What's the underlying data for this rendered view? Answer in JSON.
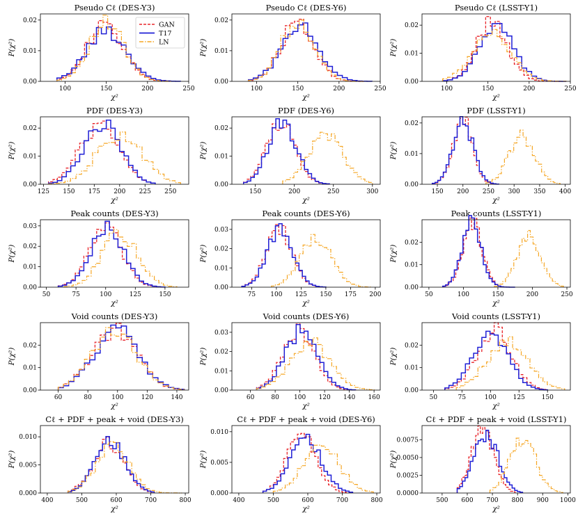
{
  "legend": [
    "GAN",
    "T17",
    "LN"
  ],
  "series_colors": {
    "GAN": "#e8262b",
    "T17": "#1f1fd6",
    "LN": "#f5a623"
  },
  "xlabel": "χ²",
  "ylabel": "P(χ²)",
  "chart_data": [
    {
      "type": "step",
      "title": "Pseudo Cℓ (DES-Y3)",
      "xlim": [
        70,
        250
      ],
      "ylim": [
        0,
        0.022
      ],
      "xticks": [
        {
          "v": 100,
          "l": "100"
        },
        {
          "v": 150,
          "l": "150"
        },
        {
          "v": 200,
          "l": "200"
        },
        {
          "v": 250,
          "l": "250"
        }
      ],
      "yticks": [
        {
          "v": 0,
          "l": "0.00"
        },
        {
          "v": 0.01,
          "l": "0.01"
        },
        {
          "v": 0.02,
          "l": "0.02"
        }
      ],
      "legend_shown": true,
      "series": [
        {
          "name": "GAN",
          "mu": 148,
          "sd": 22,
          "lo": 90,
          "hi": 230,
          "bins": 25
        },
        {
          "name": "T17",
          "mu": 150,
          "sd": 24,
          "lo": 90,
          "hi": 240,
          "bins": 25
        },
        {
          "name": "LN",
          "mu": 150,
          "sd": 21,
          "lo": 90,
          "hi": 230,
          "bins": 25
        }
      ]
    },
    {
      "type": "step",
      "title": "Pseudo Cℓ (DES-Y6)",
      "xlim": [
        70,
        250
      ],
      "ylim": [
        0,
        0.022
      ],
      "xticks": [
        {
          "v": 100,
          "l": "100"
        },
        {
          "v": 150,
          "l": "150"
        },
        {
          "v": 200,
          "l": "200"
        },
        {
          "v": 250,
          "l": "250"
        }
      ],
      "yticks": [
        {
          "v": 0,
          "l": "0.00"
        },
        {
          "v": 0.01,
          "l": "0.01"
        },
        {
          "v": 0.02,
          "l": "0.02"
        }
      ],
      "series": [
        {
          "name": "GAN",
          "mu": 150,
          "sd": 20,
          "lo": 90,
          "hi": 230,
          "bins": 25
        },
        {
          "name": "T17",
          "mu": 153,
          "sd": 23,
          "lo": 90,
          "hi": 240,
          "bins": 25
        },
        {
          "name": "LN",
          "mu": 150,
          "sd": 20,
          "lo": 90,
          "hi": 230,
          "bins": 25
        }
      ]
    },
    {
      "type": "step",
      "title": "Pseudo Cℓ (LSST-Y1)",
      "xlim": [
        70,
        250
      ],
      "ylim": [
        0,
        0.024
      ],
      "xticks": [
        {
          "v": 100,
          "l": "100"
        },
        {
          "v": 150,
          "l": "150"
        },
        {
          "v": 200,
          "l": "200"
        },
        {
          "v": 250,
          "l": "250"
        }
      ],
      "yticks": [
        {
          "v": 0,
          "l": "0.00"
        },
        {
          "v": 0.01,
          "l": "0.01"
        },
        {
          "v": 0.02,
          "l": "0.02"
        }
      ],
      "series": [
        {
          "name": "GAN",
          "mu": 155,
          "sd": 19,
          "lo": 95,
          "hi": 240,
          "bins": 25
        },
        {
          "name": "T17",
          "mu": 160,
          "sd": 21,
          "lo": 95,
          "hi": 245,
          "bins": 25
        },
        {
          "name": "LN",
          "mu": 155,
          "sd": 23,
          "lo": 95,
          "hi": 245,
          "bins": 25
        }
      ]
    },
    {
      "type": "step",
      "title": "PDF (DES-Y3)",
      "xlim": [
        122,
        268
      ],
      "ylim": [
        0,
        0.024
      ],
      "xticks": [
        {
          "v": 125,
          "l": "125"
        },
        {
          "v": 150,
          "l": "150"
        },
        {
          "v": 175,
          "l": "175"
        },
        {
          "v": 200,
          "l": "200"
        },
        {
          "v": 225,
          "l": "225"
        },
        {
          "v": 250,
          "l": "250"
        }
      ],
      "yticks": [
        {
          "v": 0,
          "l": "0.00"
        },
        {
          "v": 0.01,
          "l": "0.01"
        },
        {
          "v": 0.02,
          "l": "0.02"
        }
      ],
      "series": [
        {
          "name": "GAN",
          "mu": 180,
          "sd": 19,
          "lo": 130,
          "hi": 235,
          "bins": 24
        },
        {
          "name": "T17",
          "mu": 183,
          "sd": 18,
          "lo": 130,
          "hi": 235,
          "bins": 24
        },
        {
          "name": "LN",
          "mu": 200,
          "sd": 22,
          "lo": 130,
          "hi": 260,
          "bins": 24
        }
      ]
    },
    {
      "type": "step",
      "title": "PDF (DES-Y6)",
      "xlim": [
        120,
        310
      ],
      "ylim": [
        0,
        0.024
      ],
      "xticks": [
        {
          "v": 150,
          "l": "150"
        },
        {
          "v": 200,
          "l": "200"
        },
        {
          "v": 250,
          "l": "250"
        },
        {
          "v": 300,
          "l": "300"
        }
      ],
      "yticks": [
        {
          "v": 0,
          "l": "0.00"
        },
        {
          "v": 0.01,
          "l": "0.01"
        },
        {
          "v": 0.02,
          "l": "0.02"
        }
      ],
      "series": [
        {
          "name": "GAN",
          "mu": 183,
          "sd": 18,
          "lo": 135,
          "hi": 245,
          "bins": 24
        },
        {
          "name": "T17",
          "mu": 185,
          "sd": 18,
          "lo": 135,
          "hi": 245,
          "bins": 24
        },
        {
          "name": "LN",
          "mu": 240,
          "sd": 22,
          "lo": 185,
          "hi": 300,
          "bins": 24
        }
      ]
    },
    {
      "type": "step",
      "title": "PDF (LSST-Y1)",
      "xlim": [
        120,
        410
      ],
      "ylim": [
        0,
        0.022
      ],
      "xticks": [
        {
          "v": 150,
          "l": "150"
        },
        {
          "v": 200,
          "l": "200"
        },
        {
          "v": 250,
          "l": "250"
        },
        {
          "v": 300,
          "l": "300"
        },
        {
          "v": 350,
          "l": "350"
        },
        {
          "v": 400,
          "l": "400"
        }
      ],
      "yticks": [
        {
          "v": 0,
          "l": "0.00"
        },
        {
          "v": 0.01,
          "l": "0.01"
        },
        {
          "v": 0.02,
          "l": "0.02"
        }
      ],
      "series": [
        {
          "name": "GAN",
          "mu": 200,
          "sd": 19,
          "lo": 140,
          "hi": 270,
          "bins": 24
        },
        {
          "name": "T17",
          "mu": 201,
          "sd": 20,
          "lo": 140,
          "hi": 270,
          "bins": 24
        },
        {
          "name": "LN",
          "mu": 315,
          "sd": 25,
          "lo": 245,
          "hi": 390,
          "bins": 24
        }
      ]
    },
    {
      "type": "step",
      "title": "Peak counts (DES-Y3)",
      "xlim": [
        45,
        170
      ],
      "ylim": [
        0,
        0.033
      ],
      "xticks": [
        {
          "v": 50,
          "l": "50"
        },
        {
          "v": 75,
          "l": "75"
        },
        {
          "v": 100,
          "l": "100"
        },
        {
          "v": 125,
          "l": "125"
        },
        {
          "v": 150,
          "l": "150"
        }
      ],
      "yticks": [
        {
          "v": 0,
          "l": "0.00"
        },
        {
          "v": 0.01,
          "l": "0.01"
        },
        {
          "v": 0.02,
          "l": "0.02"
        },
        {
          "v": 0.03,
          "l": "0.03"
        }
      ],
      "series": [
        {
          "name": "GAN",
          "mu": 100,
          "sd": 14,
          "lo": 60,
          "hi": 150,
          "bins": 25
        },
        {
          "name": "T17",
          "mu": 101,
          "sd": 14,
          "lo": 60,
          "hi": 150,
          "bins": 25
        },
        {
          "name": "LN",
          "mu": 112,
          "sd": 15,
          "lo": 65,
          "hi": 160,
          "bins": 25
        }
      ]
    },
    {
      "type": "step",
      "title": "Peak counts (DES-Y6)",
      "xlim": [
        55,
        205
      ],
      "ylim": [
        0,
        0.035
      ],
      "xticks": [
        {
          "v": 75,
          "l": "75"
        },
        {
          "v": 100,
          "l": "100"
        },
        {
          "v": 125,
          "l": "125"
        },
        {
          "v": 150,
          "l": "150"
        },
        {
          "v": 175,
          "l": "175"
        },
        {
          "v": 200,
          "l": "200"
        }
      ],
      "yticks": [
        {
          "v": 0,
          "l": "0.00"
        },
        {
          "v": 0.01,
          "l": "0.01"
        },
        {
          "v": 0.02,
          "l": "0.02"
        },
        {
          "v": 0.03,
          "l": "0.03"
        }
      ],
      "series": [
        {
          "name": "GAN",
          "mu": 103,
          "sd": 13,
          "lo": 65,
          "hi": 150,
          "bins": 25
        },
        {
          "name": "T17",
          "mu": 104,
          "sd": 13,
          "lo": 65,
          "hi": 150,
          "bins": 25
        },
        {
          "name": "LN",
          "mu": 140,
          "sd": 16,
          "lo": 95,
          "hi": 195,
          "bins": 25
        }
      ]
    },
    {
      "type": "step",
      "title": "Peak counts (LSST-Y1)",
      "xlim": [
        40,
        255
      ],
      "ylim": [
        0,
        0.03
      ],
      "xticks": [
        {
          "v": 50,
          "l": "50"
        },
        {
          "v": 100,
          "l": "100"
        },
        {
          "v": 150,
          "l": "150"
        },
        {
          "v": 200,
          "l": "200"
        },
        {
          "v": 250,
          "l": "250"
        }
      ],
      "yticks": [
        {
          "v": 0,
          "l": "0.00"
        },
        {
          "v": 0.01,
          "l": "0.01"
        },
        {
          "v": 0.02,
          "l": "0.02"
        }
      ],
      "series": [
        {
          "name": "GAN",
          "mu": 113,
          "sd": 14,
          "lo": 70,
          "hi": 165,
          "bins": 25
        },
        {
          "name": "T17",
          "mu": 112,
          "sd": 14,
          "lo": 70,
          "hi": 175,
          "bins": 25
        },
        {
          "name": "LN",
          "mu": 195,
          "sd": 17,
          "lo": 145,
          "hi": 245,
          "bins": 25
        }
      ]
    },
    {
      "type": "step",
      "title": "Void counts (DES-Y3)",
      "xlim": [
        48,
        148
      ],
      "ylim": [
        0,
        0.03
      ],
      "xticks": [
        {
          "v": 60,
          "l": "60"
        },
        {
          "v": 80,
          "l": "80"
        },
        {
          "v": 100,
          "l": "100"
        },
        {
          "v": 120,
          "l": "120"
        },
        {
          "v": 140,
          "l": "140"
        }
      ],
      "yticks": [
        {
          "v": 0,
          "l": "0.00"
        },
        {
          "v": 0.01,
          "l": "0.01"
        },
        {
          "v": 0.02,
          "l": "0.02"
        }
      ],
      "series": [
        {
          "name": "GAN",
          "mu": 98,
          "sd": 15,
          "lo": 60,
          "hi": 145,
          "bins": 24
        },
        {
          "name": "T17",
          "mu": 99,
          "sd": 15,
          "lo": 60,
          "hi": 145,
          "bins": 24
        },
        {
          "name": "LN",
          "mu": 98,
          "sd": 15,
          "lo": 60,
          "hi": 145,
          "bins": 24
        }
      ]
    },
    {
      "type": "step",
      "title": "Void counts (DES-Y6)",
      "xlim": [
        45,
        165
      ],
      "ylim": [
        0,
        0.035
      ],
      "xticks": [
        {
          "v": 60,
          "l": "60"
        },
        {
          "v": 80,
          "l": "80"
        },
        {
          "v": 100,
          "l": "100"
        },
        {
          "v": 120,
          "l": "120"
        },
        {
          "v": 140,
          "l": "140"
        },
        {
          "v": 160,
          "l": "160"
        }
      ],
      "yticks": [
        {
          "v": 0,
          "l": "0.00"
        },
        {
          "v": 0.01,
          "l": "0.01"
        },
        {
          "v": 0.02,
          "l": "0.02"
        },
        {
          "v": 0.03,
          "l": "0.03"
        }
      ],
      "series": [
        {
          "name": "GAN",
          "mu": 99,
          "sd": 13,
          "lo": 65,
          "hi": 145,
          "bins": 25
        },
        {
          "name": "T17",
          "mu": 101,
          "sd": 13,
          "lo": 65,
          "hi": 145,
          "bins": 25
        },
        {
          "name": "LN",
          "mu": 108,
          "sd": 16,
          "lo": 65,
          "hi": 160,
          "bins": 25
        }
      ]
    },
    {
      "type": "step",
      "title": "Void counts (LSST-Y1)",
      "xlim": [
        40,
        170
      ],
      "ylim": [
        0,
        0.03
      ],
      "xticks": [
        {
          "v": 50,
          "l": "50"
        },
        {
          "v": 75,
          "l": "75"
        },
        {
          "v": 100,
          "l": "100"
        },
        {
          "v": 125,
          "l": "125"
        },
        {
          "v": 150,
          "l": "150"
        }
      ],
      "yticks": [
        {
          "v": 0,
          "l": "0.00"
        },
        {
          "v": 0.01,
          "l": "0.01"
        },
        {
          "v": 0.02,
          "l": "0.02"
        }
      ],
      "series": [
        {
          "name": "GAN",
          "mu": 103,
          "sd": 15,
          "lo": 60,
          "hi": 150,
          "bins": 25
        },
        {
          "name": "T17",
          "mu": 100,
          "sd": 15,
          "lo": 60,
          "hi": 150,
          "bins": 25
        },
        {
          "name": "LN",
          "mu": 115,
          "sd": 18,
          "lo": 70,
          "hi": 165,
          "bins": 25
        }
      ]
    },
    {
      "type": "step",
      "title": "Cℓ + PDF + peak + void (DES-Y3)",
      "xlim": [
        380,
        810
      ],
      "ylim": [
        0,
        0.012
      ],
      "xticks": [
        {
          "v": 400,
          "l": "400"
        },
        {
          "v": 500,
          "l": "500"
        },
        {
          "v": 600,
          "l": "600"
        },
        {
          "v": 700,
          "l": "700"
        },
        {
          "v": 800,
          "l": "800"
        }
      ],
      "yticks": [
        {
          "v": 0,
          "l": "0.000"
        },
        {
          "v": 0.005,
          "l": "0.005"
        },
        {
          "v": 0.01,
          "l": "0.010"
        }
      ],
      "series": [
        {
          "name": "GAN",
          "mu": 578,
          "sd": 45,
          "lo": 460,
          "hi": 710,
          "bins": 25
        },
        {
          "name": "T17",
          "mu": 583,
          "sd": 44,
          "lo": 460,
          "hi": 710,
          "bins": 25
        },
        {
          "name": "LN",
          "mu": 590,
          "sd": 48,
          "lo": 460,
          "hi": 790,
          "bins": 25
        }
      ]
    },
    {
      "type": "step",
      "title": "Cℓ + PDF + peak + void (DES-Y6)",
      "xlim": [
        380,
        810
      ],
      "ylim": [
        0,
        0.011
      ],
      "xticks": [
        {
          "v": 400,
          "l": "400"
        },
        {
          "v": 500,
          "l": "500"
        },
        {
          "v": 600,
          "l": "600"
        },
        {
          "v": 700,
          "l": "700"
        },
        {
          "v": 800,
          "l": "800"
        }
      ],
      "yticks": [
        {
          "v": 0,
          "l": "0.000"
        },
        {
          "v": 0.005,
          "l": "0.005"
        },
        {
          "v": 0.01,
          "l": "0.010"
        }
      ],
      "series": [
        {
          "name": "GAN",
          "mu": 583,
          "sd": 42,
          "lo": 470,
          "hi": 720,
          "bins": 25
        },
        {
          "name": "T17",
          "mu": 595,
          "sd": 46,
          "lo": 470,
          "hi": 730,
          "bins": 25
        },
        {
          "name": "LN",
          "mu": 640,
          "sd": 52,
          "lo": 500,
          "hi": 790,
          "bins": 25
        }
      ]
    },
    {
      "type": "step",
      "title": "Cℓ + PDF + peak + void (LSST-Y1)",
      "xlim": [
        420,
        1010
      ],
      "ylim": [
        0,
        0.0095
      ],
      "xticks": [
        {
          "v": 500,
          "l": "500"
        },
        {
          "v": 600,
          "l": "600"
        },
        {
          "v": 700,
          "l": "700"
        },
        {
          "v": 800,
          "l": "800"
        },
        {
          "v": 900,
          "l": "900"
        },
        {
          "v": 1000,
          "l": "1000"
        }
      ],
      "yticks": [
        {
          "v": 0,
          "l": "0.0000"
        },
        {
          "v": 0.0025,
          "l": "0.0025"
        },
        {
          "v": 0.005,
          "l": "0.0050"
        },
        {
          "v": 0.0075,
          "l": "0.0075"
        }
      ],
      "series": [
        {
          "name": "GAN",
          "mu": 660,
          "sd": 44,
          "lo": 560,
          "hi": 790,
          "bins": 25
        },
        {
          "name": "T17",
          "mu": 675,
          "sd": 48,
          "lo": 560,
          "hi": 820,
          "bins": 25
        },
        {
          "name": "LN",
          "mu": 820,
          "sd": 52,
          "lo": 690,
          "hi": 980,
          "bins": 25
        }
      ]
    }
  ]
}
